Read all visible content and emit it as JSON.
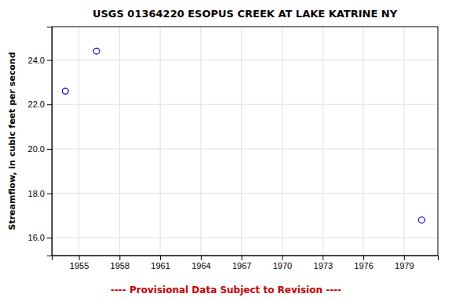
{
  "chart_data": {
    "type": "scatter",
    "title": "USGS 01364220 ESOPUS CREEK AT LAKE KATRINE NY",
    "ylabel": "Streamflow, in cubic feet per second",
    "x": [
      1954.0,
      1956.3,
      1980.3
    ],
    "values": [
      22.6,
      24.4,
      16.8
    ],
    "color": "#0000CC",
    "marker": "circle",
    "xlim": [
      1953.0,
      1981.5
    ],
    "ylim": [
      15.2,
      25.5
    ],
    "xticks": [
      1955,
      1958,
      1961,
      1964,
      1967,
      1970,
      1973,
      1976,
      1979
    ],
    "yticks": [
      {
        "value": 16.0,
        "label": "16.0"
      },
      {
        "value": 18.0,
        "label": "18.0"
      },
      {
        "value": 20.0,
        "label": "20.0"
      },
      {
        "value": 22.0,
        "label": "22.0"
      },
      {
        "value": 24.0,
        "label": "24.0"
      }
    ],
    "grid": true,
    "annotations": [
      {
        "text": "---- Provisional Data Subject to Revision ----",
        "color": "#cc0000"
      }
    ]
  }
}
